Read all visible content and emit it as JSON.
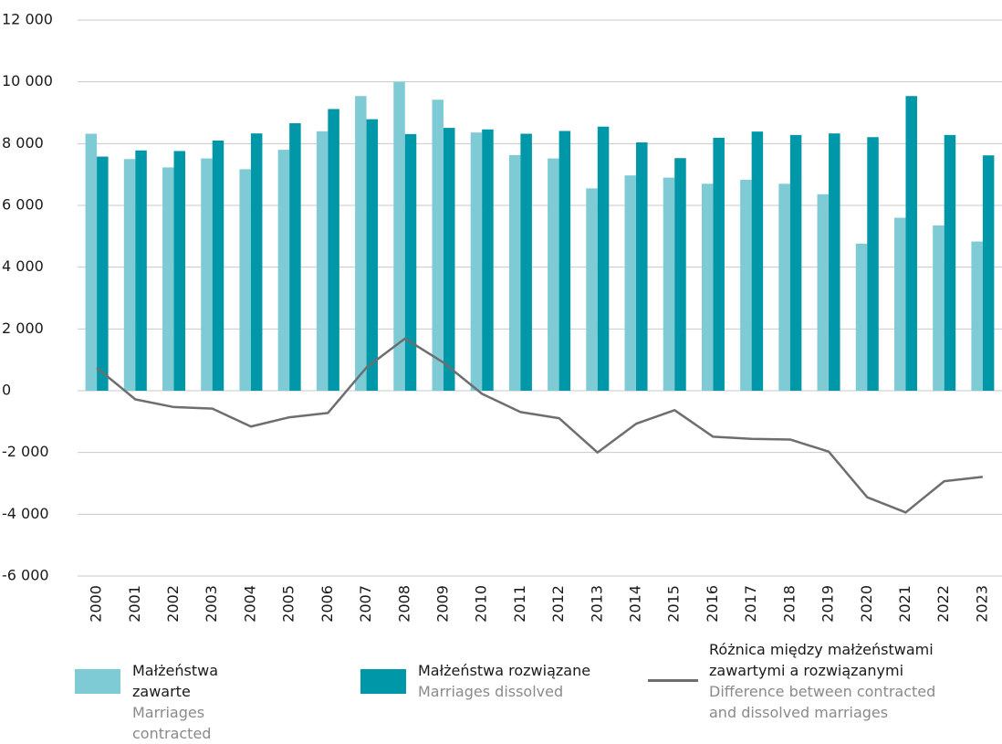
{
  "chart_data": {
    "type": "bar_line",
    "categories": [
      "2000",
      "2001",
      "2002",
      "2003",
      "2004",
      "2005",
      "2006",
      "2007",
      "2008",
      "2009",
      "2010",
      "2011",
      "2012",
      "2013",
      "2014",
      "2015",
      "2016",
      "2017",
      "2018",
      "2019",
      "2020",
      "2021",
      "2022",
      "2023"
    ],
    "series": [
      {
        "name": "Małżeństwa zawarte",
        "name_en": "Marriages contracted",
        "type": "bar",
        "color": "#7ecbd6",
        "values": [
          8320,
          7500,
          7230,
          7520,
          7170,
          7800,
          8400,
          9540,
          10000,
          9420,
          8360,
          7630,
          7520,
          6550,
          6970,
          6900,
          6700,
          6830,
          6700,
          6360,
          4760,
          5600,
          5350,
          4830
        ]
      },
      {
        "name": "Małżeństwa rozwiązane",
        "name_en": "Marriages dissolved",
        "type": "bar",
        "color": "#0097a8",
        "values": [
          7580,
          7780,
          7760,
          8100,
          8330,
          8660,
          9120,
          8790,
          8310,
          8510,
          8460,
          8320,
          8410,
          8550,
          8040,
          7530,
          8190,
          8390,
          8280,
          8330,
          8210,
          9540,
          8280,
          7620
        ]
      },
      {
        "name": "Różnica między małżeństwami zawartymi a rozwiązanymi",
        "name_en": "Difference between contracted and dissolved marriages",
        "type": "line",
        "color": "#6d6e70",
        "values": [
          740,
          -280,
          -530,
          -580,
          -1160,
          -860,
          -720,
          750,
          1690,
          910,
          -100,
          -690,
          -890,
          -2000,
          -1070,
          -630,
          -1490,
          -1560,
          -1580,
          -1970,
          -3450,
          -3940,
          -2930,
          -2790
        ]
      }
    ],
    "ylim": [
      -6000,
      12000
    ],
    "yticks": [
      {
        "value": -6000,
        "label": "-6 000"
      },
      {
        "value": -4000,
        "label": "-4 000"
      },
      {
        "value": -2000,
        "label": "-2 000"
      },
      0,
      {
        "value": 2000,
        "label": "2 000"
      },
      {
        "value": 4000,
        "label": "4 000"
      },
      {
        "value": 6000,
        "label": "6 000"
      },
      {
        "value": 8000,
        "label": "8 000"
      },
      {
        "value": 10000,
        "label": "10 000"
      },
      {
        "value": 12000,
        "label": "12 000"
      }
    ],
    "grid": true
  }
}
